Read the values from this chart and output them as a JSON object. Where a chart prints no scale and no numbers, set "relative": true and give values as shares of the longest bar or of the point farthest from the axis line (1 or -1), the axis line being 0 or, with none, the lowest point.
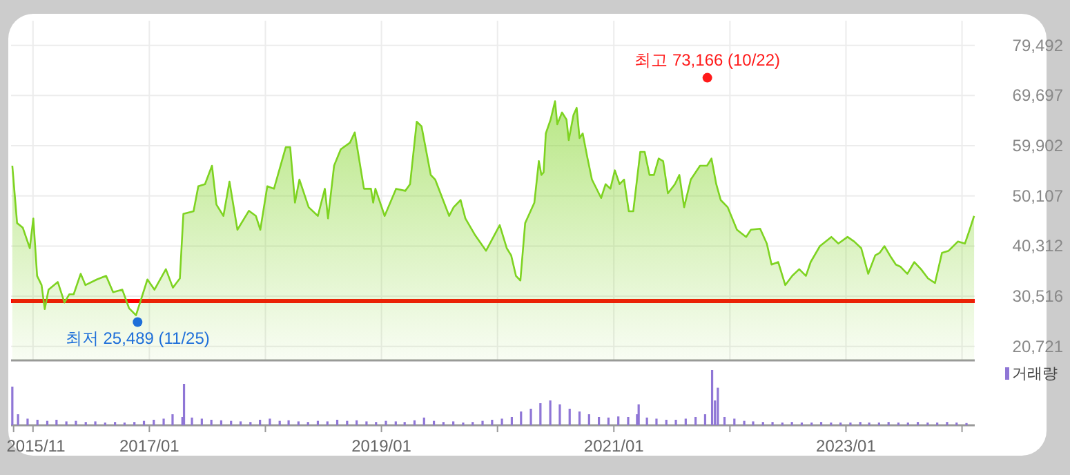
{
  "chart_data": [
    {
      "type": "area",
      "tick_labels": "y",
      "grid": true,
      "xlim": [
        "2015-10-24",
        "2024-02-10"
      ],
      "xticks": [
        {
          "value": "2016-01",
          "label": null
        },
        {
          "value": "2017-01",
          "label": null
        },
        {
          "value": "2018-01",
          "label": null
        },
        {
          "value": "2019-01",
          "label": null
        },
        {
          "value": "2020-01",
          "label": null
        },
        {
          "value": "2021-01",
          "label": null
        },
        {
          "value": "2022-01",
          "label": null
        },
        {
          "value": "2023-01",
          "label": null
        },
        {
          "value": "2024-01",
          "label": null
        }
      ],
      "ylim": [
        18000,
        84300
      ],
      "yticks": [
        {
          "value": 20721,
          "label": "20,721"
        },
        {
          "value": 30516,
          "label": "30,516"
        },
        {
          "value": 40312,
          "label": "40,312"
        },
        {
          "value": 50107,
          "label": "50,107"
        },
        {
          "value": 59902,
          "label": "59,902"
        },
        {
          "value": 69697,
          "label": "69,697"
        },
        {
          "value": 79492,
          "label": "79,492"
        }
      ],
      "ref_lines": [
        {
          "axis": "y",
          "value": 29600,
          "label": null,
          "color": "#ff0000"
        }
      ],
      "annotations": [
        {
          "text": "최고 73,166 (10/22)",
          "x": "2021-10-22",
          "y": 73166
        },
        {
          "text": "최저 25,489 (11/25)",
          "x": "2016-11-25",
          "y": 25489
        }
      ],
      "x": [
        "2015-10-28",
        "2015-11-12",
        "2015-11-30",
        "2015-12-22",
        "2016-01-02",
        "2016-01-14",
        "2016-01-28",
        "2016-02-07",
        "2016-02-19",
        "2016-03-19",
        "2016-04-09",
        "2016-04-24",
        "2016-05-08",
        "2016-05-30",
        "2016-06-14",
        "2016-07-20",
        "2016-08-18",
        "2016-09-09",
        "2016-10-08",
        "2016-10-29",
        "2016-11-20",
        "2016-12-26",
        "2017-01-17",
        "2017-02-22",
        "2017-03-16",
        "2017-04-07",
        "2017-04-18",
        "2017-05-20",
        "2017-06-04",
        "2017-06-25",
        "2017-07-17",
        "2017-07-31",
        "2017-08-22",
        "2017-09-10",
        "2017-10-05",
        "2017-11-10",
        "2017-12-02",
        "2017-12-16",
        "2018-01-07",
        "2018-01-28",
        "2018-03-06",
        "2018-03-20",
        "2018-04-04",
        "2018-04-18",
        "2018-05-17",
        "2018-06-15",
        "2018-07-07",
        "2018-07-17",
        "2018-08-05",
        "2018-08-26",
        "2018-09-24",
        "2018-10-09",
        "2018-11-07",
        "2018-11-29",
        "2018-12-06",
        "2018-12-13",
        "2019-01-11",
        "2019-02-16",
        "2019-03-17",
        "2019-04-01",
        "2019-04-22",
        "2019-05-07",
        "2019-06-05",
        "2019-06-19",
        "2019-08-02",
        "2019-08-16",
        "2019-09-07",
        "2019-09-22",
        "2019-10-21",
        "2019-11-26",
        "2020-01-08",
        "2020-01-30",
        "2020-02-13",
        "2020-02-28",
        "2020-03-13",
        "2020-03-28",
        "2020-04-26",
        "2020-05-10",
        "2020-05-18",
        "2020-05-25",
        "2020-06-01",
        "2020-06-16",
        "2020-06-30",
        "2020-07-07",
        "2020-07-22",
        "2020-08-05",
        "2020-08-12",
        "2020-08-27",
        "2020-09-06",
        "2020-09-15",
        "2020-09-25",
        "2020-10-09",
        "2020-10-24",
        "2020-11-22",
        "2020-12-06",
        "2020-12-21",
        "2021-01-04",
        "2021-01-19",
        "2021-02-02",
        "2021-02-17",
        "2021-03-03",
        "2021-03-25",
        "2021-04-08",
        "2021-04-23",
        "2021-05-07",
        "2021-05-22",
        "2021-06-05",
        "2021-06-20",
        "2021-07-12",
        "2021-07-26",
        "2021-08-10",
        "2021-08-31",
        "2021-09-29",
        "2021-10-21",
        "2021-11-04",
        "2021-11-19",
        "2021-12-03",
        "2021-12-25",
        "2022-01-23",
        "2022-02-21",
        "2022-03-08",
        "2022-04-06",
        "2022-04-27",
        "2022-05-12",
        "2022-06-02",
        "2022-06-24",
        "2022-07-16",
        "2022-08-07",
        "2022-08-28",
        "2022-09-12",
        "2022-10-11",
        "2022-11-16",
        "2022-12-08",
        "2023-01-06",
        "2023-01-27",
        "2023-02-18",
        "2023-03-12",
        "2023-04-03",
        "2023-04-17",
        "2023-05-02",
        "2023-05-23",
        "2023-06-07",
        "2023-06-21",
        "2023-07-13",
        "2023-08-04",
        "2023-08-25",
        "2023-09-16",
        "2023-10-08",
        "2023-10-30",
        "2023-11-20",
        "2023-12-19",
        "2024-01-10",
        "2024-01-25",
        "2024-02-08"
      ],
      "series": [
        {
          "color": "#7ed321",
          "values": [
            56000,
            44800,
            43900,
            39900,
            45700,
            34500,
            32700,
            28000,
            31800,
            33300,
            29300,
            30900,
            30900,
            34900,
            32700,
            33800,
            34500,
            31300,
            31800,
            28200,
            26800,
            33800,
            31800,
            35800,
            32200,
            34000,
            46600,
            47100,
            52000,
            52400,
            56000,
            48400,
            46200,
            52900,
            43500,
            47200,
            46200,
            43500,
            52000,
            51500,
            59600,
            59600,
            48800,
            53300,
            47900,
            46200,
            51500,
            45700,
            56000,
            59200,
            60500,
            62500,
            51500,
            51500,
            48800,
            51500,
            46200,
            51500,
            51100,
            52400,
            64600,
            63700,
            54200,
            53300,
            46200,
            47900,
            49300,
            45700,
            42600,
            39400,
            44400,
            39900,
            38500,
            34500,
            33600,
            44800,
            48800,
            56900,
            54200,
            54700,
            62300,
            65000,
            68600,
            64100,
            66400,
            65000,
            61000,
            65900,
            67300,
            61400,
            62300,
            57800,
            53300,
            49700,
            52400,
            51500,
            55100,
            52400,
            53300,
            47100,
            47100,
            58700,
            58700,
            54200,
            54200,
            57400,
            56900,
            50600,
            52400,
            54200,
            47900,
            53300,
            56000,
            56000,
            57400,
            52400,
            49300,
            47900,
            43500,
            42100,
            43500,
            43700,
            40800,
            36700,
            37200,
            32700,
            34500,
            35800,
            34500,
            37200,
            40300,
            42100,
            40800,
            42100,
            41200,
            39900,
            34900,
            38500,
            39000,
            40300,
            38100,
            36700,
            36300,
            34900,
            37200,
            35800,
            34000,
            33100,
            39000,
            39400,
            41200,
            40800,
            43500,
            46200
          ]
        }
      ]
    },
    {
      "type": "bar",
      "relative": true,
      "tick_labels": "x",
      "legend": "top right",
      "xlim": [
        "2015-10-24",
        "2024-02-10"
      ],
      "xticks": [
        {
          "value": "2015-11",
          "label": "2015/11"
        },
        {
          "value": "2016-01",
          "label": null
        },
        {
          "value": "2017-01",
          "label": "2017/01"
        },
        {
          "value": "2018-01",
          "label": null
        },
        {
          "value": "2019-01",
          "label": "2019/01"
        },
        {
          "value": "2020-01",
          "label": null
        },
        {
          "value": "2021-01",
          "label": "2021/01"
        },
        {
          "value": "2022-01",
          "label": null
        },
        {
          "value": "2023-01",
          "label": "2023/01"
        },
        {
          "value": "2024-01",
          "label": null
        }
      ],
      "x": [
        "2015-10-28",
        "2015-11-15",
        "2015-12-15",
        "2016-01-15",
        "2016-02-15",
        "2016-03-15",
        "2016-04-15",
        "2016-05-15",
        "2016-06-15",
        "2016-07-15",
        "2016-08-15",
        "2016-09-15",
        "2016-10-15",
        "2016-11-15",
        "2016-12-15",
        "2017-01-15",
        "2017-02-15",
        "2017-03-15",
        "2017-04-15",
        "2017-04-20",
        "2017-05-15",
        "2017-06-15",
        "2017-07-15",
        "2017-08-15",
        "2017-09-15",
        "2017-10-15",
        "2017-11-15",
        "2017-12-15",
        "2018-01-15",
        "2018-02-15",
        "2018-03-15",
        "2018-04-15",
        "2018-05-15",
        "2018-06-15",
        "2018-07-15",
        "2018-08-15",
        "2018-09-15",
        "2018-10-15",
        "2018-11-15",
        "2018-12-15",
        "2019-01-15",
        "2019-02-15",
        "2019-03-15",
        "2019-04-15",
        "2019-05-15",
        "2019-06-15",
        "2019-07-15",
        "2019-08-15",
        "2019-09-15",
        "2019-10-15",
        "2019-11-15",
        "2019-12-15",
        "2020-01-15",
        "2020-02-15",
        "2020-03-15",
        "2020-04-15",
        "2020-05-15",
        "2020-06-15",
        "2020-07-15",
        "2020-08-15",
        "2020-09-15",
        "2020-10-15",
        "2020-11-15",
        "2020-12-15",
        "2021-01-15",
        "2021-02-15",
        "2021-03-15",
        "2021-03-20",
        "2021-04-15",
        "2021-05-15",
        "2021-06-15",
        "2021-07-15",
        "2021-08-15",
        "2021-09-15",
        "2021-10-15",
        "2021-11-06",
        "2021-11-15",
        "2021-11-24",
        "2021-12-15",
        "2022-01-15",
        "2022-02-15",
        "2022-03-15",
        "2022-04-15",
        "2022-05-15",
        "2022-06-15",
        "2022-07-15",
        "2022-08-15",
        "2022-09-15",
        "2022-10-15",
        "2022-11-15",
        "2022-12-15",
        "2023-01-15",
        "2023-02-15",
        "2023-03-15",
        "2023-04-15",
        "2023-05-15",
        "2023-06-15",
        "2023-07-15",
        "2023-08-15",
        "2023-09-15",
        "2023-10-15",
        "2023-11-15",
        "2023-12-15",
        "2024-01-15"
      ],
      "series": [
        {
          "name": "거래량",
          "color": "#8f76d6",
          "values": [
            0.7,
            0.2,
            0.12,
            0.1,
            0.08,
            0.1,
            0.07,
            0.08,
            0.06,
            0.07,
            0.05,
            0.06,
            0.05,
            0.06,
            0.08,
            0.1,
            0.12,
            0.2,
            0.15,
            0.75,
            0.14,
            0.12,
            0.1,
            0.09,
            0.08,
            0.07,
            0.06,
            0.1,
            0.12,
            0.08,
            0.09,
            0.07,
            0.06,
            0.08,
            0.07,
            0.1,
            0.08,
            0.09,
            0.07,
            0.06,
            0.08,
            0.07,
            0.06,
            0.09,
            0.14,
            0.08,
            0.06,
            0.07,
            0.05,
            0.06,
            0.08,
            0.1,
            0.12,
            0.15,
            0.25,
            0.3,
            0.4,
            0.45,
            0.38,
            0.3,
            0.25,
            0.2,
            0.15,
            0.14,
            0.16,
            0.15,
            0.2,
            0.38,
            0.14,
            0.12,
            0.1,
            0.1,
            0.12,
            0.15,
            0.2,
            1.0,
            0.45,
            0.68,
            0.15,
            0.12,
            0.08,
            0.07,
            0.06,
            0.06,
            0.05,
            0.06,
            0.05,
            0.05,
            0.06,
            0.05,
            0.05,
            0.05,
            0.06,
            0.05,
            0.05,
            0.06,
            0.05,
            0.05,
            0.06,
            0.05,
            0.05,
            0.06,
            0.05,
            0.04
          ]
        }
      ]
    }
  ]
}
